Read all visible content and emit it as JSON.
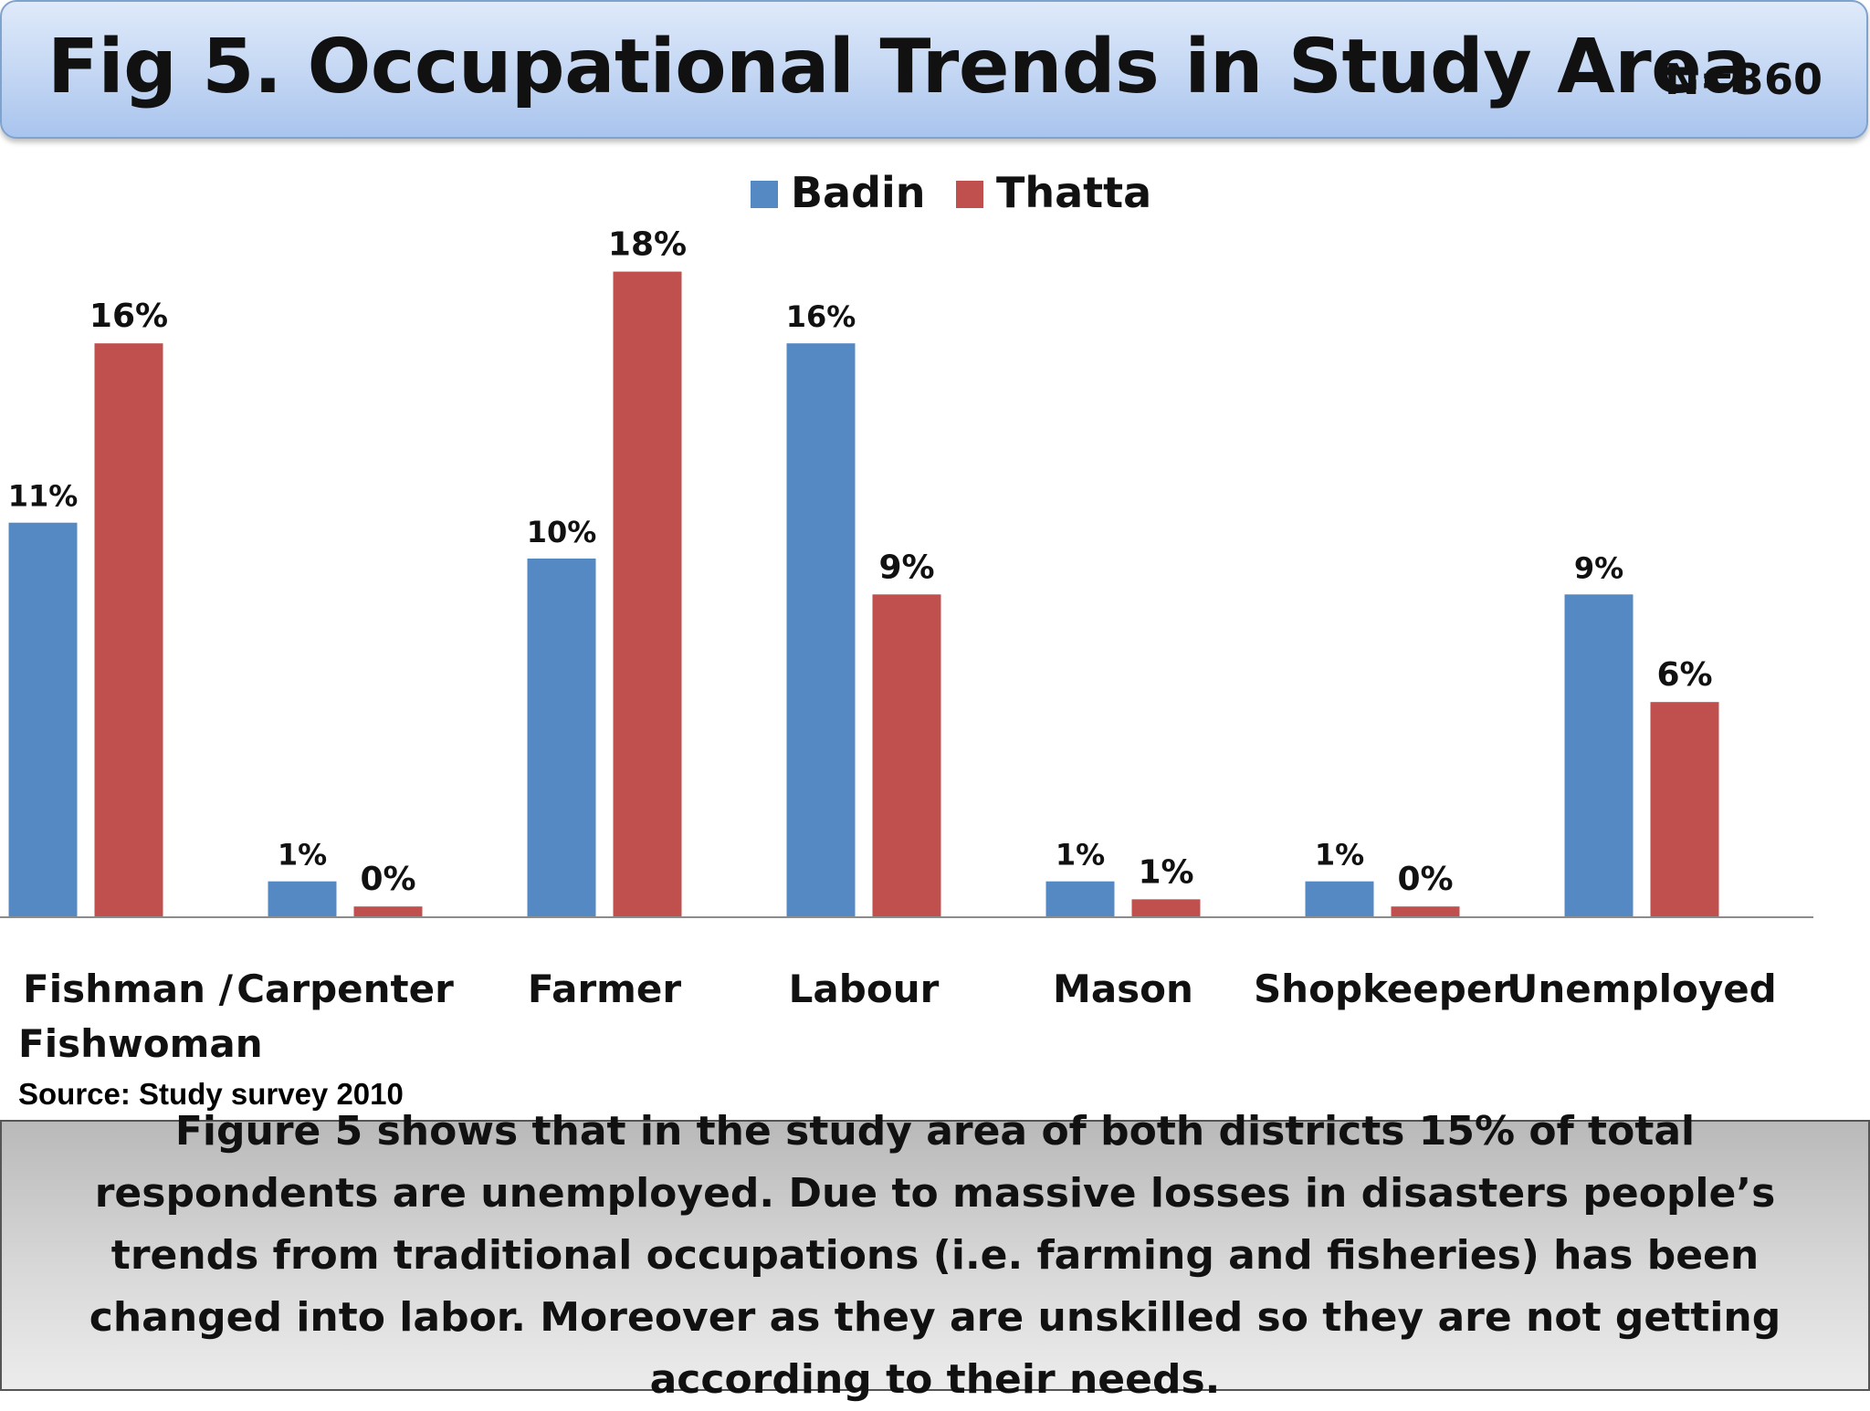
{
  "header": {
    "title": "Fig 5. Occupational Trends in Study Area",
    "sample_size": "N=360"
  },
  "colors": {
    "badin": "#5589c3",
    "thatta": "#c0504d"
  },
  "chart_data": {
    "type": "bar",
    "categories": [
      [
        "Fishman /",
        "Fishwoman"
      ],
      [
        "Carpenter"
      ],
      [
        "Farmer"
      ],
      [
        "Labour"
      ],
      [
        "Mason"
      ],
      [
        "Shopkeeper"
      ],
      [
        "Unemployed"
      ]
    ],
    "series": [
      {
        "name": "Badin",
        "values": [
          11,
          1,
          10,
          16,
          1,
          1,
          9
        ],
        "labels": [
          "11%",
          "1%",
          "10%",
          "16%",
          "1%",
          "1%",
          "9%"
        ]
      },
      {
        "name": "Thatta",
        "values": [
          16,
          0.3,
          18,
          9,
          0.5,
          0.3,
          6
        ],
        "labels": [
          "16%",
          "0%",
          "18%",
          "9%",
          "1%",
          "0%",
          "6%"
        ]
      }
    ],
    "legend_position": "top-center",
    "grid": false
  },
  "source": "Source: Study survey 2010",
  "caption": "Figure 5 shows that in the study area of both districts 15% of total respondents are unemployed. Due to massive losses in disasters people’s trends from traditional occupations (i.e. farming and fisheries) has been changed into labor. Moreover as they are unskilled so they are not getting according to their needs."
}
